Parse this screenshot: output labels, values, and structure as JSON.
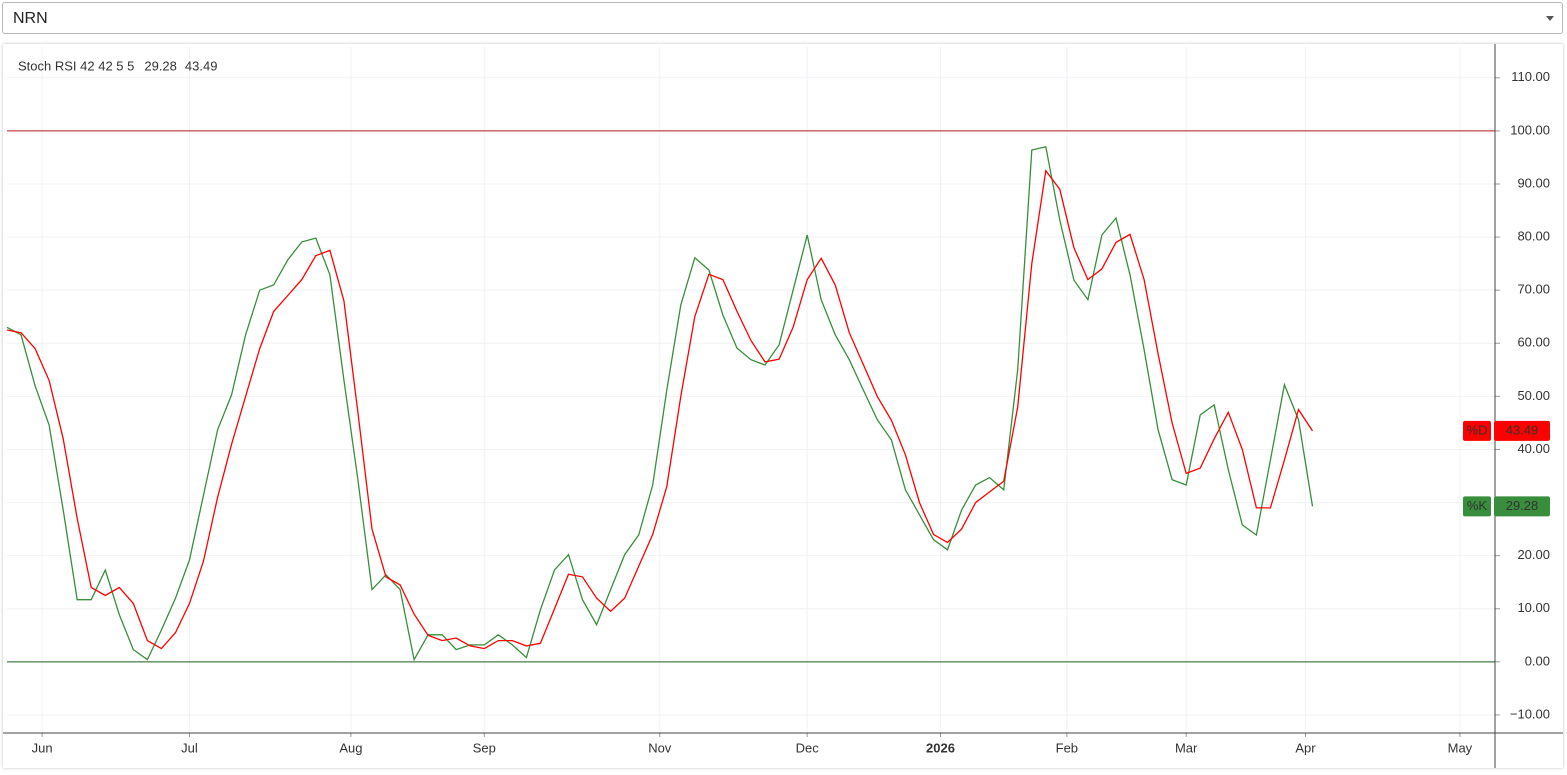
{
  "symbol": "NRN",
  "chart_data": {
    "type": "line",
    "title": "Stoch RSI 42 42 5 5",
    "x": [
      0,
      2,
      4,
      6,
      8,
      10,
      12,
      14,
      16,
      18,
      20,
      22,
      24,
      26,
      28,
      30,
      32,
      34,
      36,
      38,
      40,
      42,
      44,
      46,
      48,
      50,
      52,
      54,
      56,
      58,
      60,
      62,
      64,
      66,
      68,
      70,
      72,
      74,
      76,
      78,
      80,
      82,
      84,
      86,
      88,
      90,
      92,
      94,
      96,
      98,
      100,
      102,
      104,
      106,
      108,
      110,
      112,
      114,
      116,
      118,
      120,
      122,
      124,
      126,
      128,
      130,
      132,
      134,
      136,
      138,
      140,
      142,
      144,
      146,
      148,
      150,
      152,
      154,
      156,
      158,
      160,
      162,
      164,
      166,
      168,
      170,
      172,
      174,
      176,
      178,
      180,
      182,
      184,
      186
    ],
    "series": [
      {
        "name": "%K",
        "color": "#388e3c",
        "values": [
          63,
          61.6,
          52,
          44.6,
          28.6,
          11.7,
          11.7,
          17.3,
          8.9,
          2.3,
          0.4,
          6,
          12,
          19.2,
          31.4,
          43.7,
          50.3,
          61.6,
          70,
          71,
          75.7,
          79.1,
          79.8,
          72.9,
          53.1,
          34.3,
          13.6,
          16.4,
          13.6,
          0.4,
          5.1,
          5.1,
          2.3,
          3.2,
          3.2,
          5.1,
          3.2,
          0.8,
          9.8,
          17.3,
          20.2,
          11.7,
          7,
          13.6,
          20.2,
          23.9,
          33.3,
          51.2,
          67.2,
          76.1,
          73.8,
          65.3,
          59.1,
          56.9,
          55.9,
          59.7,
          70,
          80.4,
          68.2,
          61.6,
          56.9,
          51.2,
          45.6,
          41.8,
          32.4,
          27.7,
          23,
          21.1,
          28.6,
          33.3,
          34.7,
          32.4,
          55,
          96.4,
          97,
          83.2,
          71.9,
          68.2,
          80.4,
          83.6,
          72.9,
          58.8,
          43.7,
          34.3,
          33.3,
          46.5,
          48.4,
          36.2,
          25.8,
          23.9,
          38,
          52.2,
          45.6,
          29.28
        ]
      },
      {
        "name": "%D",
        "color": "#ff0000",
        "values": [
          62.5,
          62,
          59,
          53,
          42,
          27,
          14,
          12.5,
          14,
          11,
          4,
          2.5,
          5.5,
          11,
          19,
          31,
          41,
          50,
          59,
          66,
          69,
          72,
          76.5,
          77.5,
          68,
          47,
          25,
          16,
          14.5,
          9,
          5,
          4,
          4.5,
          3,
          2.5,
          4,
          4,
          3,
          3.5,
          10,
          16.5,
          16,
          12,
          9.5,
          12,
          18,
          24,
          33,
          50,
          65,
          73,
          72,
          66,
          60.5,
          56.5,
          57,
          63,
          72,
          76,
          71,
          62,
          56,
          50,
          45.5,
          39,
          30,
          24,
          22.5,
          25,
          30,
          32,
          34,
          48,
          75,
          92.5,
          89,
          78,
          72,
          74,
          79,
          80.5,
          72,
          58,
          45,
          35.5,
          36.5,
          42,
          47,
          40,
          29,
          29,
          38,
          47.5,
          43.49
        ]
      }
    ],
    "levels": [
      {
        "value": 100,
        "color": "#b71c1c"
      },
      {
        "value": 0,
        "color": "#1b5e20"
      }
    ],
    "xlim": [
      0,
      212
    ],
    "xticks": [
      {
        "value": 5,
        "label": "Jun"
      },
      {
        "value": 26,
        "label": "Jul"
      },
      {
        "value": 49,
        "label": "Aug"
      },
      {
        "value": 68,
        "label": "Sep"
      },
      {
        "value": 93,
        "label": "Nov"
      },
      {
        "value": 114,
        "label": "Dec"
      },
      {
        "value": 133,
        "label": "2026"
      },
      {
        "value": 151,
        "label": "Feb"
      },
      {
        "value": 168,
        "label": "Mar"
      },
      {
        "value": 185,
        "label": "Apr"
      },
      {
        "value": 207,
        "label": "May"
      }
    ],
    "ylim": [
      -13.4,
      115.8
    ],
    "yticks": [
      {
        "value": -10,
        "label": "−10.00"
      },
      {
        "value": 0,
        "label": "0.00"
      },
      {
        "value": 10,
        "label": "10.00"
      },
      {
        "value": 20,
        "label": "20.00"
      },
      {
        "value": 30,
        "label": "30.00"
      },
      {
        "value": 40,
        "label": "40.00"
      },
      {
        "value": 50,
        "label": "50.00"
      },
      {
        "value": 60,
        "label": "60.00"
      },
      {
        "value": 70,
        "label": "70.00"
      },
      {
        "value": 80,
        "label": "80.00"
      },
      {
        "value": 90,
        "label": "90.00"
      },
      {
        "value": 100,
        "label": "100.00"
      },
      {
        "value": 110,
        "label": "110.00"
      }
    ],
    "grid": true
  }
}
